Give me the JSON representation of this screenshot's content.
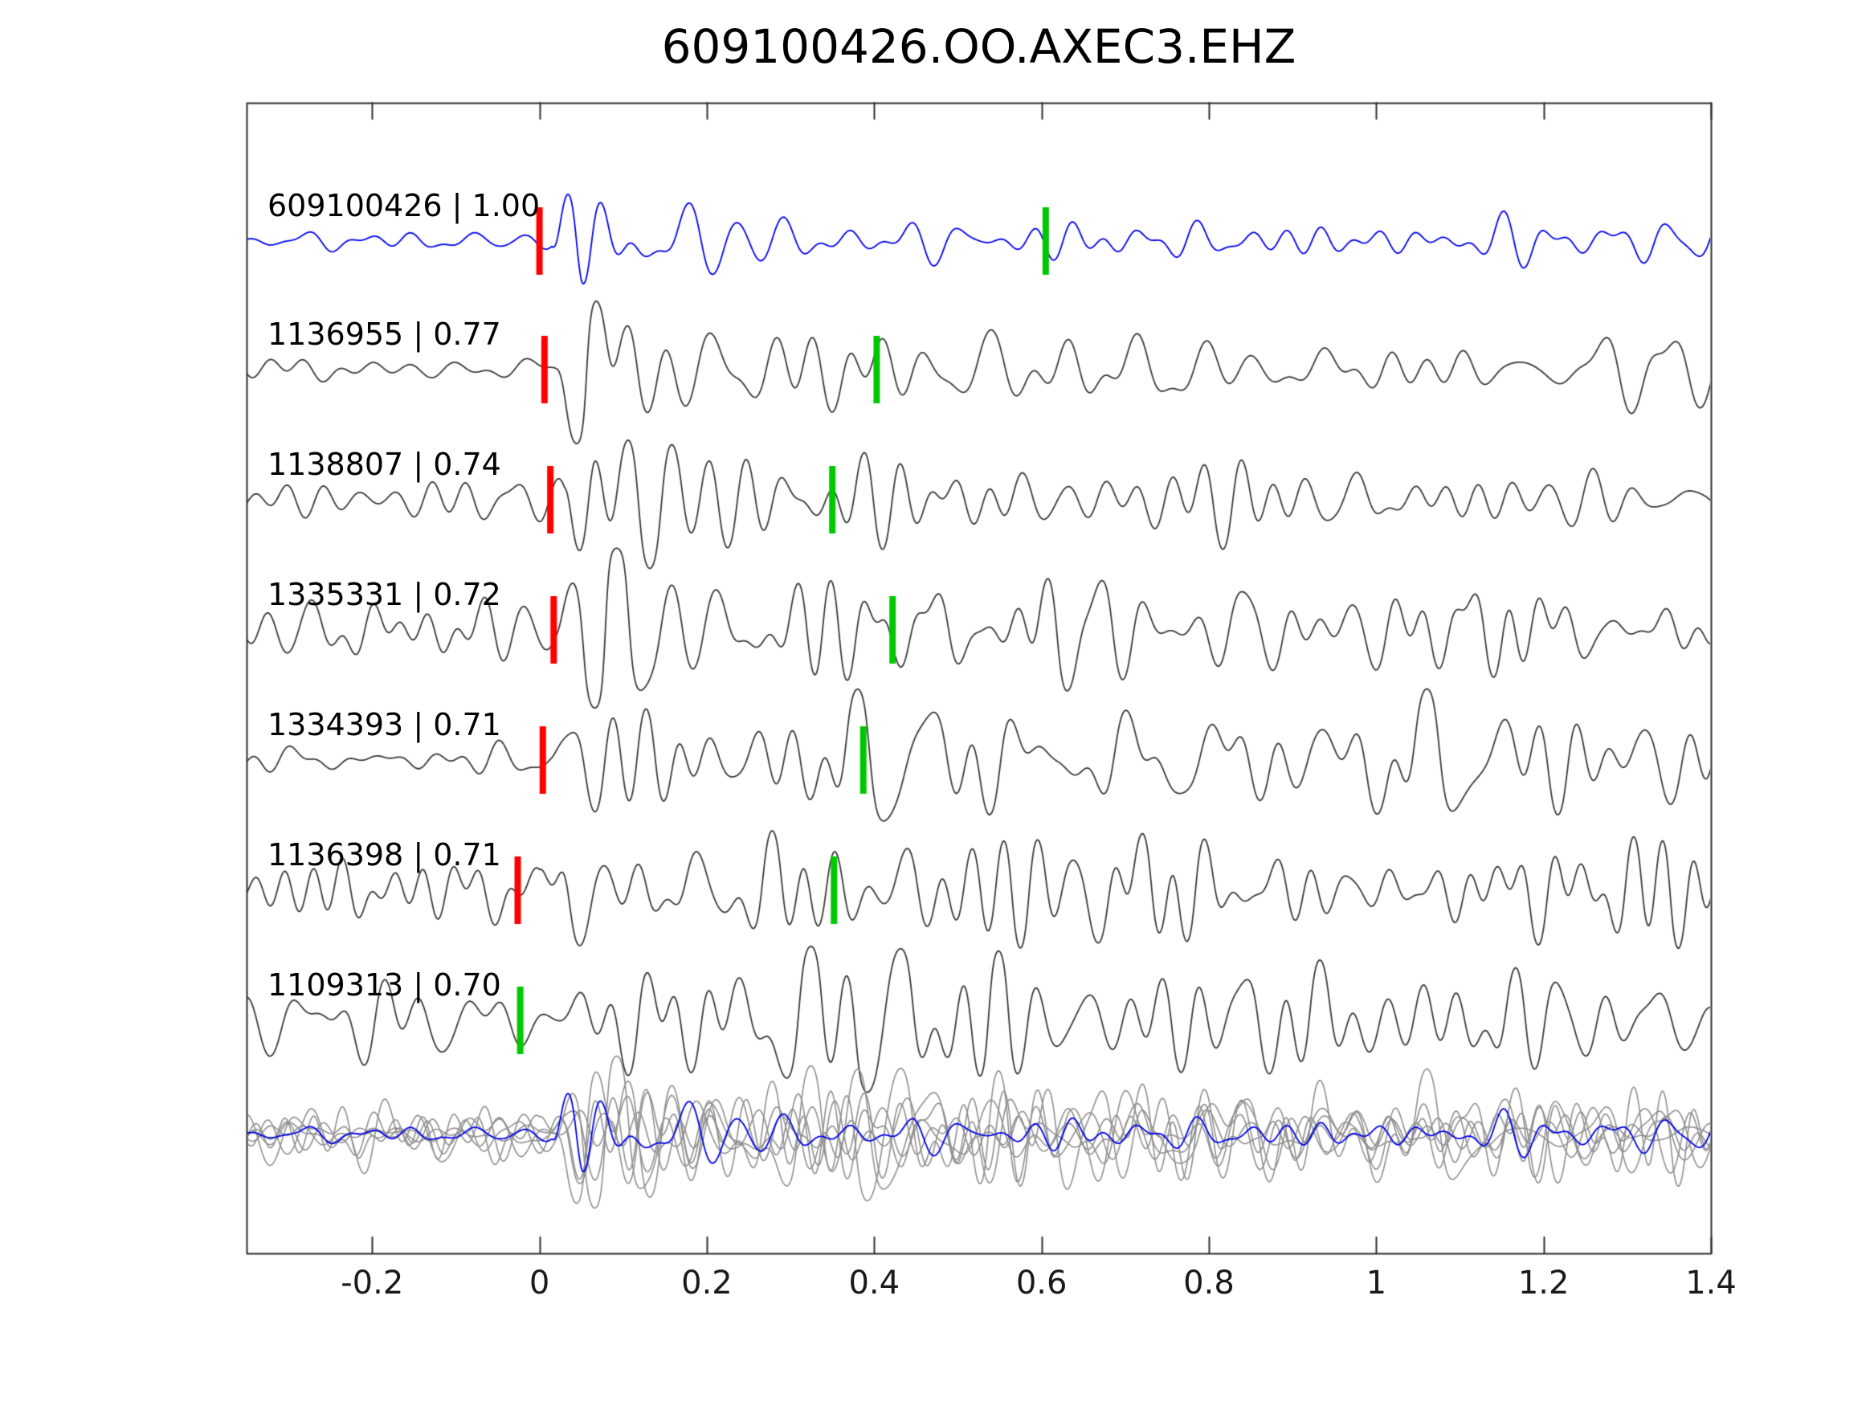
{
  "title": "609100426.OO.AXEC3.EHZ",
  "chart_data": {
    "type": "line",
    "title": "609100426.OO.AXEC3.EHZ",
    "xlabel": "",
    "ylabel": "",
    "xlim": [
      -0.35,
      1.4
    ],
    "grid": false,
    "legend": "none",
    "x_ticks": [
      {
        "value": -0.2,
        "label": "-0.2"
      },
      {
        "value": 0.0,
        "label": "0"
      },
      {
        "value": 0.2,
        "label": "0.2"
      },
      {
        "value": 0.4,
        "label": "0.4"
      },
      {
        "value": 0.6,
        "label": "0.6"
      },
      {
        "value": 0.8,
        "label": "0.8"
      },
      {
        "value": 1.0,
        "label": "1"
      },
      {
        "value": 1.2,
        "label": "1.2"
      },
      {
        "value": 1.4,
        "label": "1.4"
      }
    ],
    "colors": {
      "template_trace": "#0000ee",
      "detection_trace": "#3a3a3a",
      "overlay_trace": "#8f8f8f",
      "pick_red": "#ff0000",
      "pick_green": "#00c800",
      "axis": "#2f2f2f",
      "background": "#ffffff",
      "label_text": "#000000"
    },
    "traces": [
      {
        "id": "609100426",
        "correlation": "1.00",
        "label": "609100426 | 1.00",
        "role": "template",
        "red_pick": 0.0,
        "green_pick": 0.605,
        "synth_approx": {
          "seed": 11,
          "noise": 0.11,
          "event": 1.35,
          "onset": 0.015,
          "decay": 0.09,
          "coda": 0.22
        }
      },
      {
        "id": "1136955",
        "correlation": "0.77",
        "label": "1136955 | 0.77",
        "role": "detection",
        "red_pick": 0.006,
        "green_pick": 0.403,
        "synth_approx": {
          "seed": 22,
          "noise": 0.2,
          "event": 1.15,
          "onset": 0.02,
          "decay": 0.12,
          "coda": 0.34
        }
      },
      {
        "id": "1138807",
        "correlation": "0.74",
        "label": "1138807 | 0.74",
        "role": "detection",
        "red_pick": 0.013,
        "green_pick": 0.35,
        "synth_approx": {
          "seed": 33,
          "noise": 0.2,
          "event": 1.2,
          "onset": 0.03,
          "decay": 0.11,
          "coda": 0.36
        }
      },
      {
        "id": "1335331",
        "correlation": "0.72",
        "label": "1335331 | 0.72",
        "role": "detection",
        "red_pick": 0.017,
        "green_pick": 0.422,
        "synth_approx": {
          "seed": 44,
          "noise": 0.34,
          "event": 1.1,
          "onset": 0.02,
          "decay": 0.13,
          "coda": 0.44
        }
      },
      {
        "id": "1334393",
        "correlation": "0.71",
        "label": "1334393 | 0.71",
        "role": "detection",
        "red_pick": 0.004,
        "green_pick": 0.387,
        "synth_approx": {
          "seed": 55,
          "noise": 0.4,
          "event": 1.05,
          "onset": 0.015,
          "decay": 0.14,
          "coda": 0.5
        }
      },
      {
        "id": "1136398",
        "correlation": "0.71",
        "label": "1136398 | 0.71",
        "role": "detection",
        "red_pick": -0.026,
        "green_pick": 0.352,
        "synth_approx": {
          "seed": 66,
          "noise": 0.38,
          "event": 1.05,
          "onset": 0.0,
          "decay": 0.14,
          "coda": 0.5
        }
      },
      {
        "id": "1109313",
        "correlation": "0.70",
        "label": "1109313 | 0.70",
        "role": "detection",
        "red_pick": null,
        "green_pick": -0.023,
        "synth_approx": {
          "seed": 77,
          "noise": 0.5,
          "event": 0.55,
          "onset": 0.02,
          "decay": 0.2,
          "coda": 0.52
        }
      }
    ],
    "overlay_row": {
      "description": "all detection traces overlaid in gray with template in blue",
      "scale": 0.85
    }
  }
}
